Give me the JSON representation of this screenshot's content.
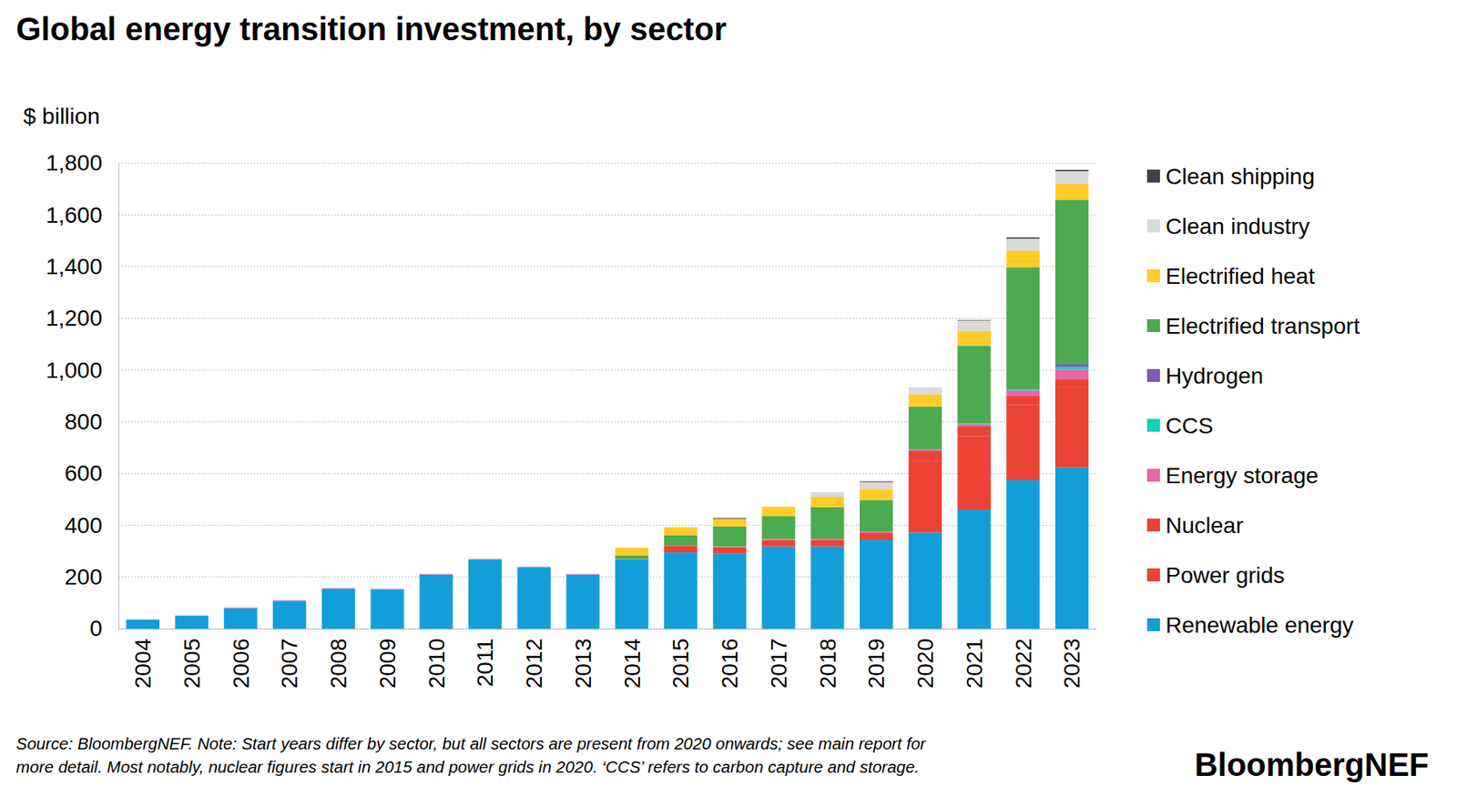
{
  "chart_data": {
    "type": "bar",
    "stacked": true,
    "grid": true,
    "legend": "right",
    "title": "Global energy transition investment, by sector",
    "y_label": "$ billion",
    "note": [
      "Source: BloombergNEF. Note: Start years differ by sector, but all sectors are present from 2020 onwards; see main report for",
      "more detail. Most notably, nuclear figures start in 2015 and power grids in 2020. ‘CCS’ refers to carbon capture and storage."
    ],
    "logo": "BloombergNEF",
    "categories": [
      "2004",
      "2005",
      "2006",
      "2007",
      "2008",
      "2009",
      "2010",
      "2011",
      "2012",
      "2013",
      "2014",
      "2015",
      "2016",
      "2017",
      "2018",
      "2019",
      "2020",
      "2021",
      "2022",
      "2023"
    ],
    "ylim": [
      0,
      1800
    ],
    "yticks": [
      0,
      200,
      400,
      600,
      800,
      {
        "value": 1000,
        "label": "1,000"
      },
      {
        "value": 1200,
        "label": "1,200"
      },
      {
        "value": 1400,
        "label": "1,400"
      },
      {
        "value": 1600,
        "label": "1,600"
      },
      {
        "value": 1800,
        "label": "1,800"
      }
    ],
    "series": [
      {
        "name": "Renewable energy",
        "color": "#129fd9",
        "values": [
          35,
          50,
          80,
          108,
          155,
          152,
          210,
          268,
          238,
          210,
          268,
          295,
          290,
          318,
          318,
          345,
          372,
          460,
          575,
          623
        ]
      },
      {
        "name": "Power grids",
        "color": "#ea4335",
        "values": [
          null,
          null,
          null,
          null,
          null,
          null,
          null,
          null,
          null,
          null,
          null,
          null,
          null,
          null,
          null,
          null,
          275,
          285,
          290,
          310
        ]
      },
      {
        "name": "Nuclear",
        "color": "#ea4335",
        "values": [
          null,
          null,
          null,
          null,
          null,
          null,
          null,
          null,
          null,
          null,
          null,
          25,
          25,
          25,
          25,
          25,
          40,
          38,
          36,
          33
        ]
      },
      {
        "name": "Energy storage",
        "color": "#e966a8",
        "values": [
          1,
          1,
          2,
          2,
          2,
          2,
          2,
          2,
          2,
          2,
          2,
          3,
          3,
          4,
          5,
          5,
          5,
          8,
          20,
          36
        ]
      },
      {
        "name": "CCS",
        "color": "#14d2b9",
        "values": [
          null,
          null,
          null,
          null,
          null,
          null,
          null,
          null,
          null,
          null,
          null,
          null,
          null,
          null,
          null,
          null,
          1,
          2,
          4,
          11
        ]
      },
      {
        "name": "Hydrogen",
        "color": "#7f5ab6",
        "values": [
          null,
          null,
          null,
          null,
          null,
          null,
          null,
          null,
          null,
          null,
          null,
          null,
          null,
          null,
          null,
          null,
          0.5,
          1,
          1,
          10
        ]
      },
      {
        "name": "Electrified transport",
        "color": "#4caa50",
        "values": [
          null,
          null,
          null,
          null,
          null,
          null,
          null,
          null,
          null,
          null,
          13,
          38,
          77,
          88,
          122,
          122,
          166,
          300,
          472,
          636
        ]
      },
      {
        "name": "Electrified heat",
        "color": "#ffcc29",
        "values": [
          null,
          null,
          null,
          null,
          null,
          null,
          null,
          null,
          null,
          null,
          30,
          32,
          30,
          37,
          40,
          43,
          47,
          58,
          65,
          62
        ]
      },
      {
        "name": "Clean industry",
        "color": "#d9d9d9",
        "values": [
          null,
          null,
          null,
          null,
          null,
          null,
          null,
          null,
          null,
          null,
          null,
          null,
          null,
          null,
          18,
          27,
          27,
          40,
          45,
          48
        ]
      },
      {
        "name": "Clean shipping",
        "color": "#404040",
        "values": [
          null,
          null,
          null,
          null,
          null,
          null,
          null,
          null,
          null,
          null,
          null,
          null,
          3,
          null,
          null,
          3,
          null,
          2,
          5,
          5
        ]
      }
    ]
  }
}
